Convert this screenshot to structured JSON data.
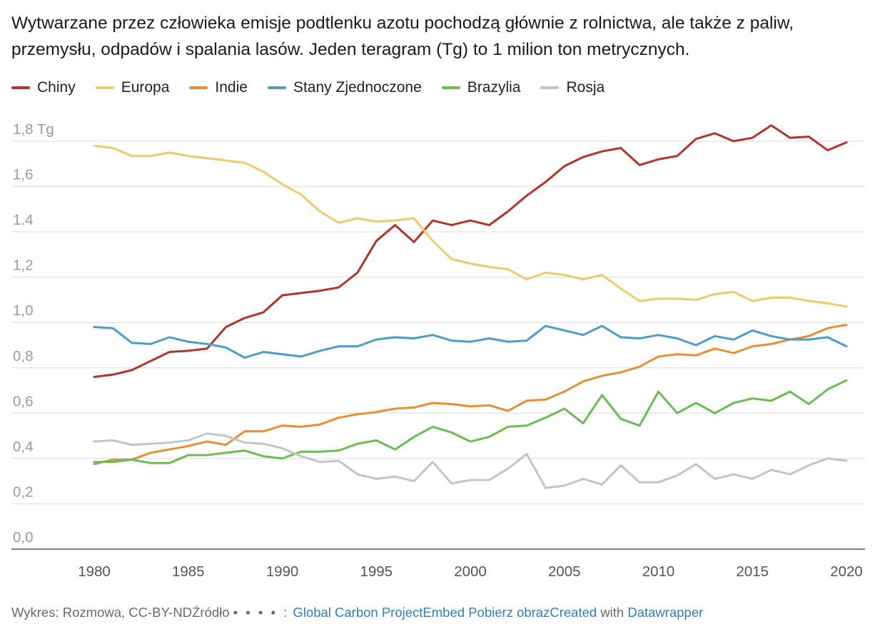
{
  "title": "Wytwarzane przez człowieka emisje podtlenku azotu pochodzą głównie z rolnictwa, ale także z paliw, przemysłu, odpadów i spalania lasów. Jeden teragram (Tg) to 1 milion ton metrycznych.",
  "chart_data": {
    "type": "line",
    "title": "Wytwarzane przez człowieka emisje podtlenku azotu pochodzą głównie z rolnictwa, ale także z paliw, przemysłu, odpadów i spalania lasów. Jeden teragram (Tg) to 1 milion ton metrycznych.",
    "x": [
      1980,
      1981,
      1982,
      1983,
      1984,
      1985,
      1986,
      1987,
      1988,
      1989,
      1990,
      1991,
      1992,
      1993,
      1994,
      1995,
      1996,
      1997,
      1998,
      1999,
      2000,
      2001,
      2002,
      2003,
      2004,
      2005,
      2006,
      2007,
      2008,
      2009,
      2010,
      2011,
      2012,
      2013,
      2014,
      2015,
      2016,
      2017,
      2018,
      2019,
      2020
    ],
    "xlim": [
      1980,
      2020
    ],
    "ylim": [
      0,
      1.8
    ],
    "y_unit": "Tg",
    "x_ticks": [
      "1980",
      "1985",
      "1990",
      "1995",
      "2000",
      "2005",
      "2010",
      "2015",
      "2020"
    ],
    "x_tick_values": [
      1980,
      1985,
      1990,
      1995,
      2000,
      2005,
      2010,
      2015,
      2020
    ],
    "y_ticks": [
      "0,0",
      "0,2",
      "0,4",
      "0,6",
      "0,8",
      "1,0",
      "1,2",
      "1.4",
      "1,6",
      "1,8 Tg"
    ],
    "y_tick_values": [
      0,
      0.2,
      0.4,
      0.6,
      0.8,
      1.0,
      1.2,
      1.4,
      1.6,
      1.8
    ],
    "grid": true,
    "legend_position": "top-left",
    "series": [
      {
        "name": "Chiny",
        "color": "#b7312c",
        "values": [
          0.76,
          0.77,
          0.79,
          0.83,
          0.87,
          0.875,
          0.885,
          0.98,
          1.02,
          1.045,
          1.12,
          1.13,
          1.14,
          1.155,
          1.22,
          1.36,
          1.43,
          1.355,
          1.45,
          1.43,
          1.45,
          1.43,
          1.49,
          1.56,
          1.62,
          1.69,
          1.73,
          1.755,
          1.77,
          1.695,
          1.72,
          1.735,
          1.81,
          1.835,
          1.8,
          1.815,
          1.87,
          1.815,
          1.82,
          1.76,
          1.795
        ]
      },
      {
        "name": "Europa",
        "color": "#eccc67",
        "values": [
          1.78,
          1.77,
          1.735,
          1.735,
          1.75,
          1.735,
          1.725,
          1.715,
          1.705,
          1.665,
          1.61,
          1.565,
          1.49,
          1.44,
          1.46,
          1.445,
          1.45,
          1.46,
          1.36,
          1.28,
          1.26,
          1.245,
          1.235,
          1.19,
          1.22,
          1.21,
          1.19,
          1.21,
          1.15,
          1.095,
          1.105,
          1.105,
          1.1,
          1.125,
          1.135,
          1.095,
          1.11,
          1.11,
          1.095,
          1.085,
          1.07
        ]
      },
      {
        "name": "Indie",
        "color": "#ed8d32",
        "values": [
          0.375,
          0.395,
          0.395,
          0.425,
          0.44,
          0.455,
          0.475,
          0.46,
          0.52,
          0.52,
          0.545,
          0.54,
          0.55,
          0.58,
          0.595,
          0.605,
          0.62,
          0.625,
          0.645,
          0.64,
          0.63,
          0.635,
          0.61,
          0.655,
          0.66,
          0.695,
          0.74,
          0.765,
          0.78,
          0.805,
          0.85,
          0.86,
          0.855,
          0.885,
          0.865,
          0.895,
          0.905,
          0.925,
          0.94,
          0.975,
          0.99
        ]
      },
      {
        "name": "Stany Zjednoczone",
        "color": "#4a9ec7",
        "values": [
          0.98,
          0.975,
          0.91,
          0.905,
          0.935,
          0.915,
          0.905,
          0.89,
          0.845,
          0.87,
          0.86,
          0.85,
          0.875,
          0.895,
          0.895,
          0.925,
          0.935,
          0.93,
          0.945,
          0.92,
          0.915,
          0.93,
          0.915,
          0.92,
          0.985,
          0.965,
          0.945,
          0.985,
          0.935,
          0.93,
          0.945,
          0.93,
          0.9,
          0.94,
          0.925,
          0.965,
          0.94,
          0.925,
          0.925,
          0.935,
          0.895
        ]
      },
      {
        "name": "Brazylia",
        "color": "#6cbc55",
        "values": [
          0.385,
          0.385,
          0.395,
          0.38,
          0.38,
          0.415,
          0.415,
          0.425,
          0.435,
          0.41,
          0.4,
          0.43,
          0.43,
          0.435,
          0.465,
          0.48,
          0.44,
          0.495,
          0.54,
          0.515,
          0.475,
          0.495,
          0.54,
          0.545,
          0.58,
          0.62,
          0.555,
          0.68,
          0.575,
          0.545,
          0.695,
          0.6,
          0.645,
          0.6,
          0.645,
          0.665,
          0.655,
          0.695,
          0.64,
          0.705,
          0.745
        ]
      },
      {
        "name": "Rosja",
        "color": "#c4c4c4",
        "values": [
          0.475,
          0.48,
          0.46,
          0.465,
          0.47,
          0.48,
          0.51,
          0.5,
          0.47,
          0.465,
          0.445,
          0.41,
          0.385,
          0.39,
          0.33,
          0.31,
          0.32,
          0.3,
          0.385,
          0.29,
          0.305,
          0.305,
          0.355,
          0.42,
          0.27,
          0.28,
          0.31,
          0.285,
          0.37,
          0.295,
          0.295,
          0.325,
          0.375,
          0.31,
          0.33,
          0.31,
          0.35,
          0.33,
          0.37,
          0.4,
          0.39
        ]
      }
    ]
  },
  "footer": {
    "prefix": "Wykres: Rozmowa, CC-BY-ND",
    "source_label": "Źródło",
    "dots": "• • • • :",
    "source_link": "Global Carbon Project",
    "embed": "Embed",
    "download": "Pobierz obraz",
    "created": "Created",
    "with": "with",
    "dw": "Datawrapper"
  }
}
